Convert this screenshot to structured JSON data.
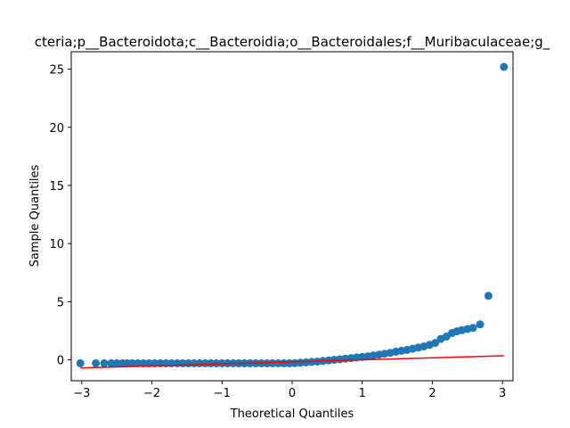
{
  "chart_data": {
    "type": "scatter",
    "title": "cteria;p__Bacteroidota;c__Bacteroidia;o__Bacteroidales;f__Muribaculaceae;g_",
    "xlabel": "Theoretical Quantiles",
    "ylabel": "Sample Quantiles",
    "xlim": [
      -3.15,
      3.15
    ],
    "ylim": [
      -1.8,
      26.5
    ],
    "xticks": [
      -3,
      -2,
      -1,
      0,
      1,
      2,
      3
    ],
    "yticks": [
      0,
      5,
      10,
      15,
      20,
      25
    ],
    "grid": false,
    "legend": "none",
    "point_color": "#1f77b4",
    "line_color": "#ff0000",
    "reference_line": {
      "x": [
        -3.02,
        3.02
      ],
      "y": [
        -0.7,
        0.35
      ]
    },
    "points": {
      "x": [
        -3.02,
        -2.8,
        -2.68,
        -2.58,
        -2.5,
        -2.42,
        -2.35,
        -2.28,
        -2.2,
        -2.12,
        -2.04,
        -1.96,
        -1.88,
        -1.8,
        -1.72,
        -1.64,
        -1.56,
        -1.48,
        -1.4,
        -1.32,
        -1.24,
        -1.16,
        -1.08,
        -1.0,
        -0.92,
        -0.84,
        -0.76,
        -0.68,
        -0.6,
        -0.52,
        -0.44,
        -0.36,
        -0.28,
        -0.2,
        -0.12,
        -0.04,
        0.04,
        0.12,
        0.2,
        0.28,
        0.36,
        0.44,
        0.52,
        0.6,
        0.68,
        0.76,
        0.84,
        0.92,
        1.0,
        1.08,
        1.16,
        1.24,
        1.32,
        1.4,
        1.48,
        1.56,
        1.64,
        1.72,
        1.8,
        1.88,
        1.96,
        2.04,
        2.12,
        2.2,
        2.28,
        2.35,
        2.42,
        2.5,
        2.58,
        2.68,
        2.8,
        3.02
      ],
      "y": [
        -0.3,
        -0.3,
        -0.3,
        -0.3,
        -0.3,
        -0.3,
        -0.3,
        -0.3,
        -0.3,
        -0.3,
        -0.3,
        -0.3,
        -0.3,
        -0.3,
        -0.3,
        -0.3,
        -0.3,
        -0.3,
        -0.3,
        -0.3,
        -0.3,
        -0.3,
        -0.3,
        -0.3,
        -0.3,
        -0.3,
        -0.3,
        -0.3,
        -0.3,
        -0.3,
        -0.3,
        -0.3,
        -0.3,
        -0.3,
        -0.3,
        -0.3,
        -0.28,
        -0.25,
        -0.22,
        -0.18,
        -0.15,
        -0.1,
        -0.05,
        0.0,
        0.05,
        0.1,
        0.15,
        0.2,
        0.25,
        0.3,
        0.38,
        0.45,
        0.52,
        0.6,
        0.7,
        0.78,
        0.85,
        0.95,
        1.05,
        1.15,
        1.28,
        1.45,
        1.8,
        2.0,
        2.3,
        2.45,
        2.55,
        2.65,
        2.75,
        3.05,
        5.5,
        25.2
      ]
    }
  }
}
